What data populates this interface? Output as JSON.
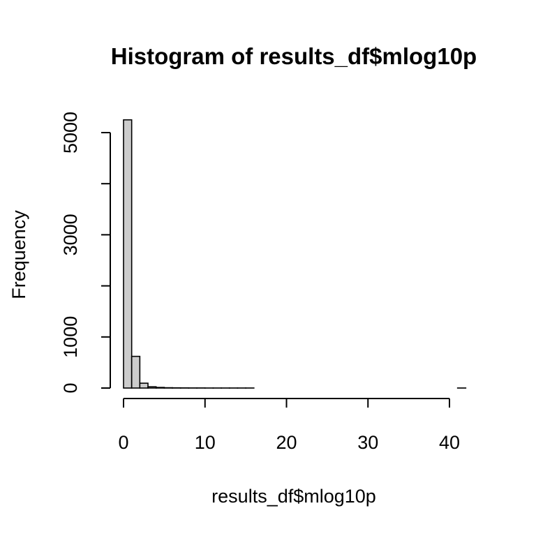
{
  "chart_data": {
    "type": "bar",
    "title": "Histogram of results_df$mlog10p",
    "xlabel": "results_df$mlog10p",
    "ylabel": "Frequency",
    "x_ticks": [
      0,
      10,
      20,
      30,
      40
    ],
    "x_tick_labels": [
      "0",
      "10",
      "20",
      "30",
      "40"
    ],
    "y_ticks": [
      0,
      1000,
      2000,
      3000,
      4000,
      5000
    ],
    "y_tick_labels": [
      "0",
      "1000",
      "",
      "3000",
      "",
      "5000"
    ],
    "xlim": [
      0,
      42
    ],
    "ylim": [
      0,
      5300
    ],
    "bin_width": 1,
    "bin_starts": [
      0,
      1,
      2,
      3,
      4,
      5,
      6,
      7,
      8,
      9,
      10,
      11,
      12,
      13,
      14,
      15,
      16,
      17,
      18,
      19,
      20,
      21,
      22,
      23,
      24,
      25,
      26,
      27,
      28,
      29,
      30,
      31,
      32,
      33,
      34,
      35,
      36,
      37,
      38,
      39,
      40,
      41
    ],
    "values": [
      5250,
      620,
      95,
      25,
      12,
      6,
      4,
      3,
      2,
      2,
      1,
      1,
      1,
      1,
      1,
      1,
      0,
      0,
      0,
      0,
      0,
      0,
      0,
      0,
      0,
      0,
      0,
      0,
      0,
      0,
      0,
      0,
      0,
      0,
      0,
      0,
      0,
      0,
      0,
      0,
      0,
      1
    ],
    "bar_fill": "#cccccc",
    "bar_stroke": "#000000",
    "grid": false,
    "legend": "none"
  }
}
